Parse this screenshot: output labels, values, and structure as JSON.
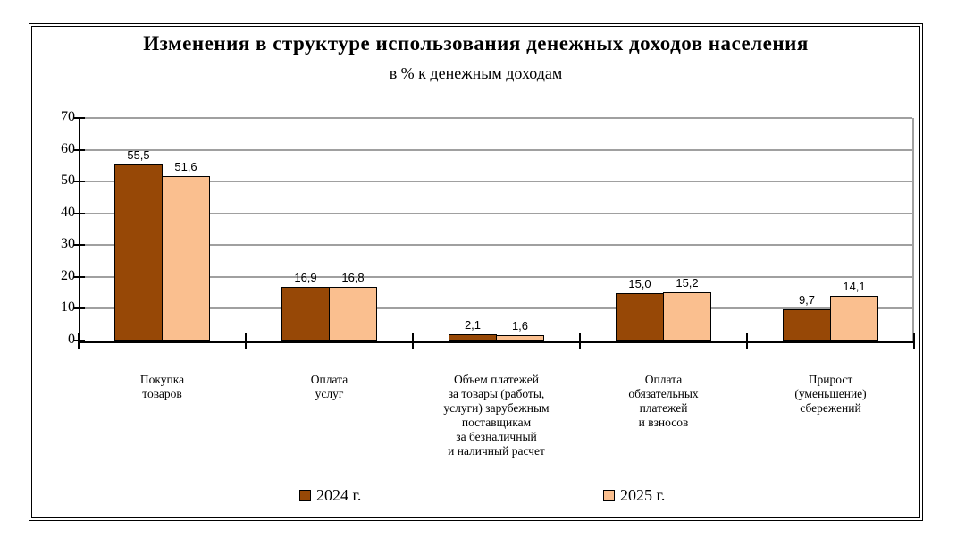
{
  "chart_data": {
    "type": "bar",
    "title": "Изменения в структуре использования денежных доходов населения",
    "subtitle": "в % к денежным доходам",
    "categories": [
      "Покупка\nтоваров",
      "Оплата\nуслуг",
      "Объем платежей\nза товары (работы,\nуслуги) зарубежным\nпоставщикам\nза безналичный\nи наличный расчет",
      "Оплата\nобязательных\nплатежей\nи взносов",
      "Прирост\n(уменьшение)\nсбережений"
    ],
    "series": [
      {
        "name": "2024 г.",
        "color": "#974806",
        "values": [
          55.5,
          16.9,
          2.1,
          15.0,
          9.7
        ]
      },
      {
        "name": "2025 г.",
        "color": "#FABF8F",
        "values": [
          51.6,
          16.8,
          1.6,
          15.2,
          14.1
        ]
      }
    ],
    "ylim": [
      0,
      70
    ],
    "ytick_step": 10,
    "grid": true,
    "gridline_color": "#A0A0A0",
    "axis_color": "#000000",
    "legend_position": "bottom",
    "decimal_separator": ","
  }
}
